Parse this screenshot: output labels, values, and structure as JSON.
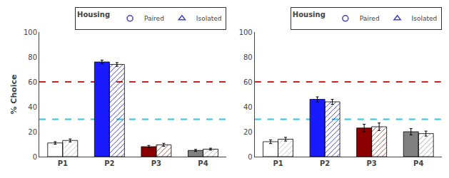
{
  "chart_data": [
    {
      "type": "bar",
      "categories": [
        "P1",
        "P2",
        "P3",
        "P4"
      ],
      "ylabel": "% Choice",
      "ylim": [
        0,
        100
      ],
      "yticks": [
        0,
        20,
        40,
        60,
        80,
        100
      ],
      "grid": false,
      "legend": "upper right",
      "legend_title": "Housing",
      "series": [
        {
          "name": "Paired",
          "color": "#4444cc",
          "marker": "circle",
          "colors": [
            "#ffffff",
            "#1a1aff",
            "#8b0000",
            "#808080"
          ],
          "values": [
            11,
            76,
            8,
            5
          ],
          "errors": [
            1,
            1.5,
            1,
            0.8
          ]
        },
        {
          "name": "Isolated",
          "color": "#4444cc",
          "marker": "triangle",
          "colors": [
            "#b0b0b0",
            "#0000aa",
            "#7a2020",
            "#909090"
          ],
          "values": [
            13,
            74,
            9.5,
            6
          ],
          "errors": [
            1.2,
            1.5,
            1.2,
            0.8
          ]
        }
      ],
      "reference_lines": [
        {
          "value": 60,
          "color": "#cc2222",
          "line_style": "dashed"
        },
        {
          "value": 30,
          "color": "#22ccdd",
          "line_style": "dashed"
        }
      ]
    },
    {
      "type": "bar",
      "categories": [
        "P1",
        "P2",
        "P3",
        "P4"
      ],
      "ylim": [
        0,
        100
      ],
      "yticks": [
        0,
        20,
        40,
        60,
        80,
        100
      ],
      "grid": false,
      "legend": "upper right",
      "legend_title": "Housing",
      "series": [
        {
          "name": "Paired",
          "color": "#4444cc",
          "marker": "circle",
          "colors": [
            "#ffffff",
            "#1a1aff",
            "#8b0000",
            "#808080"
          ],
          "values": [
            12,
            46,
            23,
            20
          ],
          "errors": [
            1.5,
            2,
            3,
            2.5
          ]
        },
        {
          "name": "Isolated",
          "color": "#4444cc",
          "marker": "triangle",
          "colors": [
            "#b0b0b0",
            "#0000aa",
            "#7a2020",
            "#909090"
          ],
          "values": [
            14,
            44,
            24,
            18.5
          ],
          "errors": [
            1.5,
            2,
            3,
            2
          ]
        }
      ],
      "reference_lines": [
        {
          "value": 60,
          "color": "#cc2222",
          "line_style": "dashed"
        },
        {
          "value": 30,
          "color": "#22ccdd",
          "line_style": "dashed"
        }
      ]
    }
  ]
}
